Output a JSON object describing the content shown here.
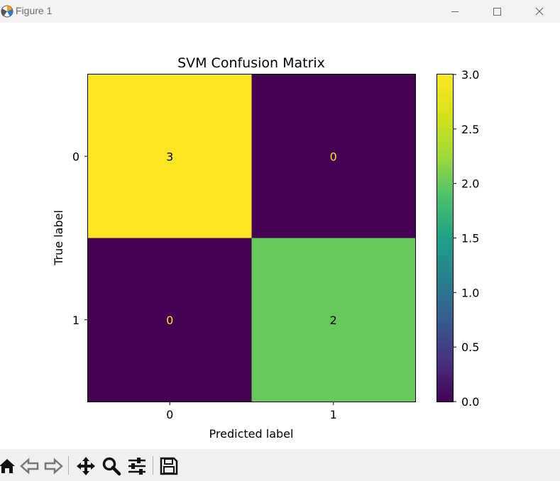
{
  "window": {
    "title": "Figure 1"
  },
  "chart_data": {
    "type": "heatmap",
    "title": "SVM Confusion Matrix",
    "xlabel": "Predicted label",
    "ylabel": "True label",
    "x_categories": [
      "0",
      "1"
    ],
    "y_categories": [
      "0",
      "1"
    ],
    "matrix": [
      [
        3,
        0
      ],
      [
        0,
        2
      ]
    ],
    "colormap": "viridis",
    "colorbar": {
      "range": [
        0.0,
        3.0
      ],
      "ticks": [
        "0.0",
        "0.5",
        "1.0",
        "1.5",
        "2.0",
        "2.5",
        "3.0"
      ]
    },
    "grid": false
  },
  "toolbar": {
    "buttons": [
      "home-icon",
      "back-icon",
      "forward-icon",
      "pan-icon",
      "zoom-icon",
      "configure-subplots-icon",
      "save-icon"
    ]
  }
}
